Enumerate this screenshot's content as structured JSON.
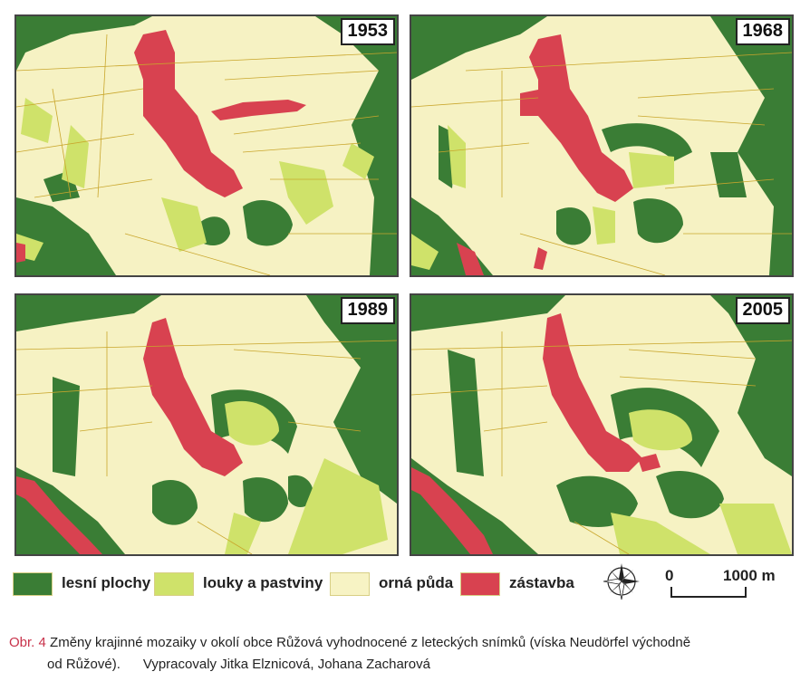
{
  "panels": [
    {
      "year": "1953"
    },
    {
      "year": "1968"
    },
    {
      "year": "1989"
    },
    {
      "year": "2005"
    }
  ],
  "legend": [
    {
      "label": "lesní plochy",
      "color": "#3a7d35"
    },
    {
      "label": "louky a pastviny",
      "color": "#cfe26a"
    },
    {
      "label": "orná půda",
      "color": "#f7f3c4"
    },
    {
      "label": "zástavba",
      "color": "#d84250"
    }
  ],
  "scale": {
    "zero": "0",
    "max": "1000 m"
  },
  "caption": {
    "prefix": "Obr. 4",
    "line1": "Změny krajinné mozaiky v okolí obce Růžová vyhodnocené z leteckých snímků (víska Neudörfel východně",
    "line2": "od Růžové).      Vypracovaly Jitka Elznicová, Johana Zacharová"
  },
  "colors": {
    "forest": "#3a7d35",
    "meadow": "#cfe26a",
    "arable": "#f7f3c4",
    "built": "#d84250",
    "boundary": "#c9a62c"
  }
}
